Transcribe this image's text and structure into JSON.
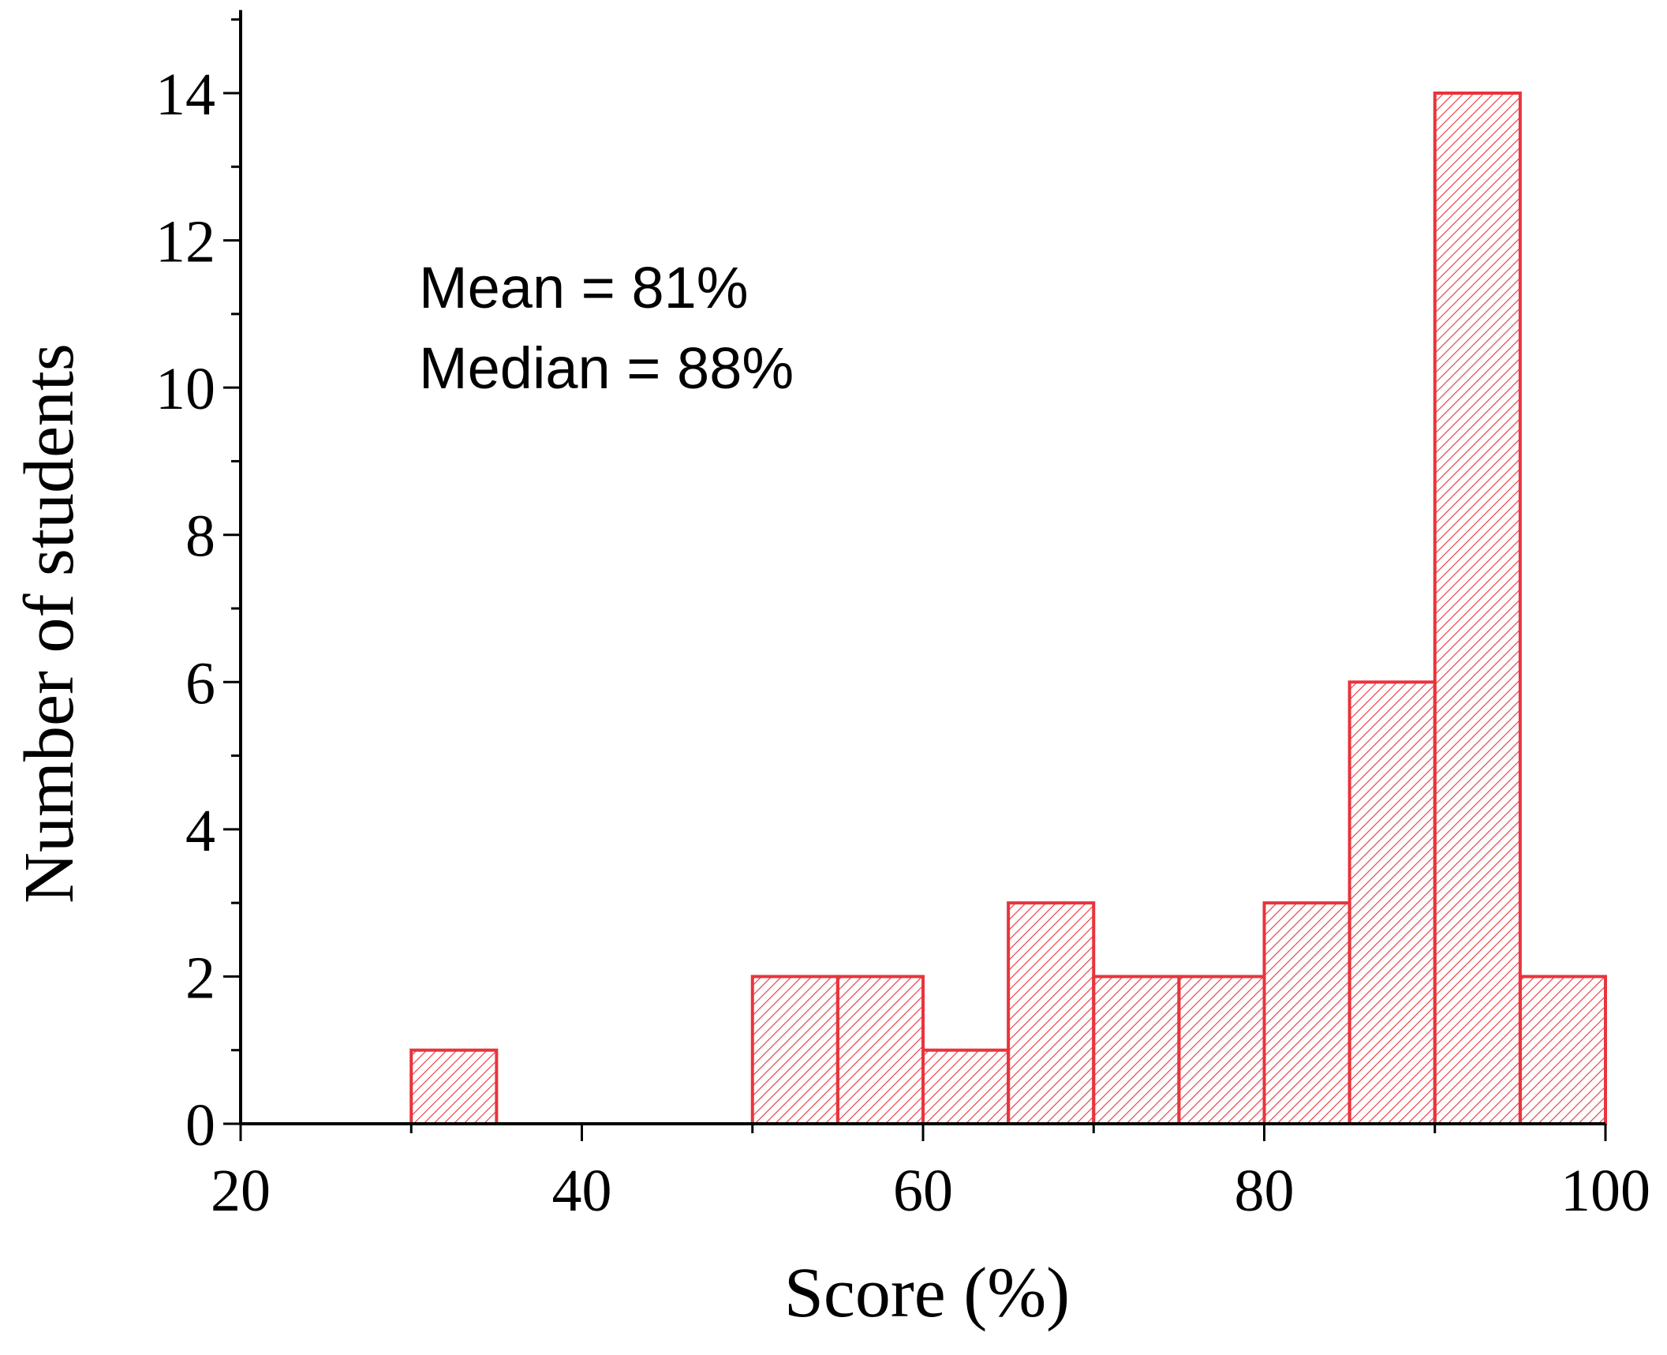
{
  "chart_data": {
    "type": "bar",
    "subtype": "histogram",
    "xlabel": "Score (%)",
    "ylabel": "Number of students",
    "xlim": [
      20,
      100
    ],
    "ylim": [
      0,
      15
    ],
    "xticks": [
      20,
      40,
      60,
      80,
      100
    ],
    "yticks": [
      0,
      2,
      4,
      6,
      8,
      10,
      12,
      14
    ],
    "bin_width": 5,
    "bins": [
      {
        "start": 30,
        "end": 35,
        "count": 1
      },
      {
        "start": 50,
        "end": 55,
        "count": 2
      },
      {
        "start": 55,
        "end": 60,
        "count": 2
      },
      {
        "start": 60,
        "end": 65,
        "count": 1
      },
      {
        "start": 65,
        "end": 70,
        "count": 3
      },
      {
        "start": 70,
        "end": 75,
        "count": 2
      },
      {
        "start": 75,
        "end": 80,
        "count": 2
      },
      {
        "start": 80,
        "end": 85,
        "count": 3
      },
      {
        "start": 85,
        "end": 90,
        "count": 6
      },
      {
        "start": 90,
        "end": 95,
        "count": 14
      },
      {
        "start": 95,
        "end": 100,
        "count": 2
      }
    ],
    "annotations": [
      "Mean = 81%",
      "Median = 88%"
    ],
    "bar_color": "#e8343c",
    "bar_pattern": "diagonal-hatch",
    "grid": false
  }
}
